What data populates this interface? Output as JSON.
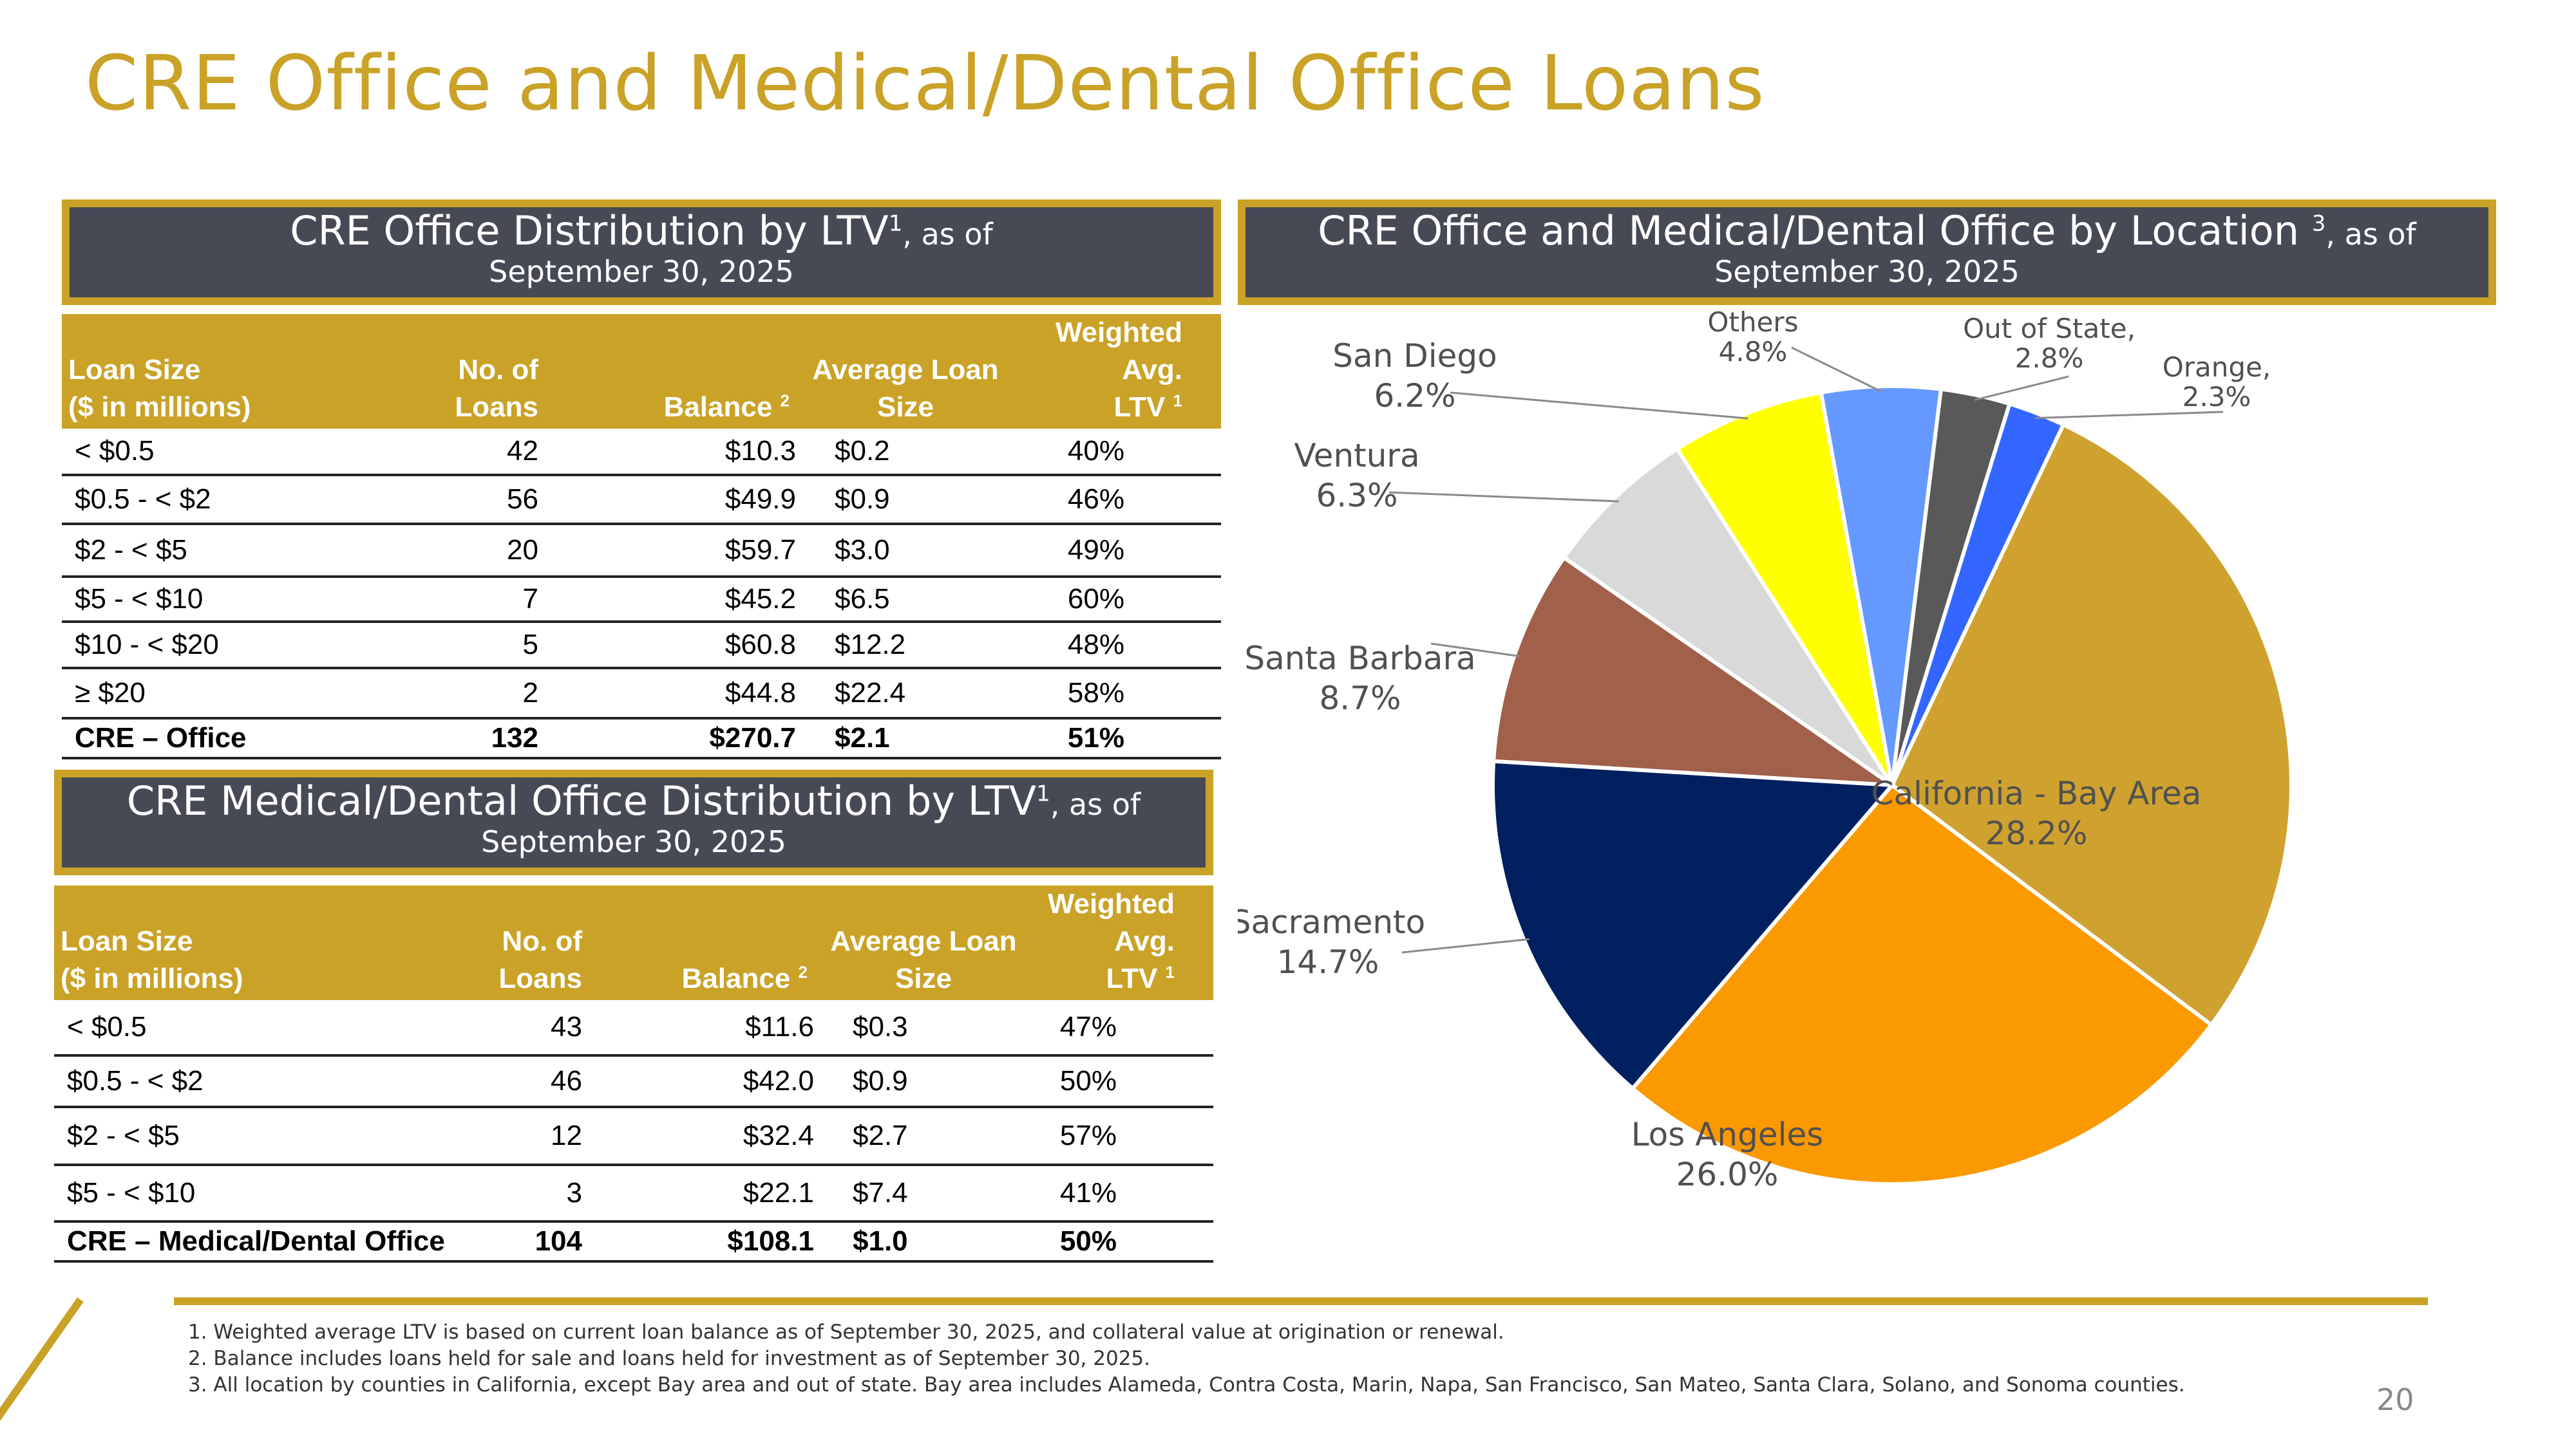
{
  "title": "CRE Office and Medical/Dental Office Loans",
  "ltv_header": {
    "main": "CRE Office Distribution by LTV",
    "sup": "1",
    "suffix": ", as of",
    "date": "September 30, 2025"
  },
  "ltv_table": {
    "columns": [
      {
        "l1": "Loan Size",
        "l2": "($ in millions)"
      },
      {
        "l1": "No. of",
        "l2": "Loans"
      },
      {
        "l1": "",
        "l2": "Balance ",
        "sup": "2"
      },
      {
        "l1": "Average Loan",
        "l2": "Size"
      },
      {
        "l1": "Weighted Avg.",
        "l2": "LTV ",
        "sup": "1"
      }
    ],
    "rows": [
      [
        "< $0.5",
        "42",
        "$10.3",
        "$0.2",
        "40%"
      ],
      [
        "$0.5 - < $2",
        "56",
        "$49.9",
        "$0.9",
        "46%"
      ],
      [
        "$2 - < $5",
        "20",
        "$59.7",
        "$3.0",
        "49%"
      ],
      [
        "$5 - < $10",
        "7",
        "$45.2",
        "$6.5",
        "60%"
      ],
      [
        "$10 - < $20",
        "5",
        "$60.8",
        "$12.2",
        "48%"
      ],
      [
        "≥ $20",
        "2",
        "$44.8",
        "$22.4",
        "58%"
      ]
    ],
    "total": [
      "CRE – Office",
      "132",
      "$270.7",
      "$2.1",
      "51%"
    ]
  },
  "med_header": {
    "main": "CRE Medical/Dental Office Distribution by LTV",
    "sup": "1",
    "suffix": ", as of",
    "date": "September 30, 2025"
  },
  "med_table": {
    "columns": [
      {
        "l1": "Loan Size",
        "l2": "($ in millions)"
      },
      {
        "l1": "No. of",
        "l2": "Loans"
      },
      {
        "l1": "",
        "l2": "Balance ",
        "sup": "2"
      },
      {
        "l1": "Average Loan",
        "l2": "Size"
      },
      {
        "l1": "Weighted Avg.",
        "l2": "LTV ",
        "sup": "1"
      }
    ],
    "rows": [
      [
        "< $0.5",
        "43",
        "$11.6",
        "$0.3",
        "47%"
      ],
      [
        "$0.5 - < $2",
        "46",
        "$42.0",
        "$0.9",
        "50%"
      ],
      [
        "$2 - < $5",
        "12",
        "$32.4",
        "$2.7",
        "57%"
      ],
      [
        "$5 - < $10",
        "3",
        "$22.1",
        "$7.4",
        "41%"
      ]
    ],
    "total": [
      "CRE – Medical/Dental Office",
      "104",
      "$108.1",
      "$1.0",
      "50%"
    ]
  },
  "loc_header": {
    "main": "CRE Office and Medical/Dental Office by Location ",
    "sup": "3",
    "suffix": ", as of",
    "date": "September 30, 2025"
  },
  "chart_data": {
    "type": "pie",
    "title": "CRE Office and Medical/Dental Office by Location, as of September 30, 2025",
    "slices": [
      {
        "label": "California - Bay Area",
        "value": 28.2,
        "pct": "28.2%",
        "color": "#cfa22f"
      },
      {
        "label": "Los Angeles",
        "value": 26.0,
        "pct": "26.0%",
        "color": "#fb9900"
      },
      {
        "label": "Sacramento",
        "value": 14.7,
        "pct": "14.7%",
        "color": "#00205f"
      },
      {
        "label": "Santa Barbara",
        "value": 8.7,
        "pct": "8.7%",
        "color": "#a0604a"
      },
      {
        "label": "Ventura",
        "value": 6.3,
        "pct": "6.3%",
        "color": "#d9d9d9"
      },
      {
        "label": "San Diego",
        "value": 6.2,
        "pct": "6.2%",
        "color": "#ffff00"
      },
      {
        "label": "Others",
        "value": 4.8,
        "pct": "4.8%",
        "color": "#6699ff"
      },
      {
        "label": "Out of State,",
        "value": 2.8,
        "pct": "2.8%",
        "color": "#595959"
      },
      {
        "label": "Orange,",
        "value": 2.3,
        "pct": "2.3%",
        "color": "#3366ff"
      }
    ]
  },
  "footnotes": [
    "1. Weighted average LTV is based on current loan balance as of September 30, 2025, and collateral value at origination or renewal.",
    "2. Balance includes loans held for sale and loans held for investment as of September 30, 2025.",
    "3. All location by counties in California, except Bay area and out of state. Bay area includes Alameda, Contra Costa, Marin, Napa, San Francisco, San Mateo, Santa Clara, Solano, and Sonoma counties."
  ],
  "page_number": "20"
}
